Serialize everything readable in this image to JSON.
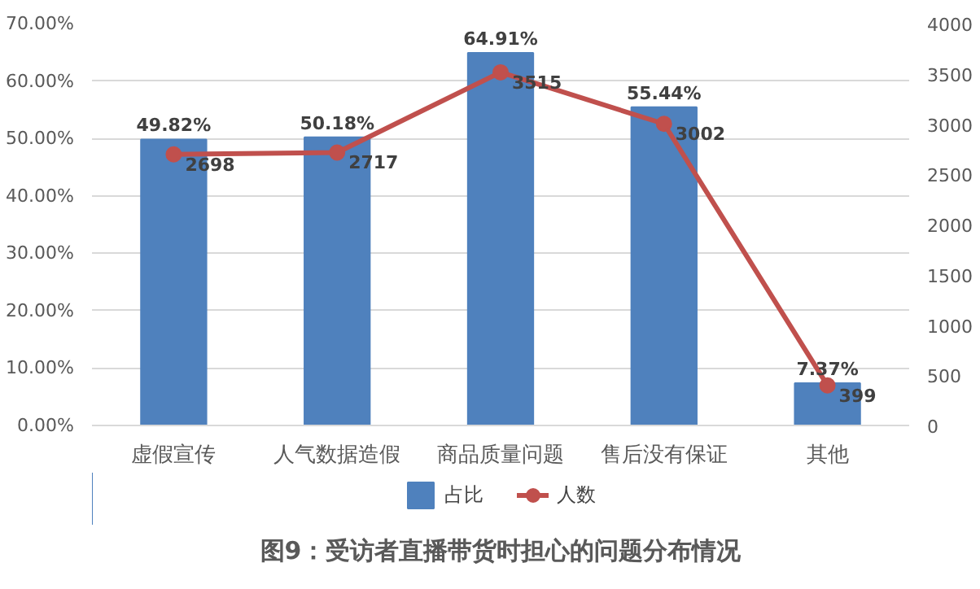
{
  "chart_data": {
    "type": "bar",
    "title": "图9：受访者直播带货时担心的问题分布情况",
    "categories": [
      "虚假宣传",
      "人气数据造假",
      "商品质量问题",
      "售后没有保证",
      "其他"
    ],
    "series": [
      {
        "name": "占比",
        "type": "bar",
        "color": "#4f81bd",
        "values": [
          49.82,
          50.18,
          64.91,
          55.44,
          7.37
        ],
        "value_labels": [
          "49.82%",
          "50.18%",
          "64.91%",
          "55.44%",
          "7.37%"
        ]
      },
      {
        "name": "人数",
        "type": "line",
        "axis": "y2",
        "color": "#c0504d",
        "marker": "circle",
        "values": [
          2698,
          2717,
          3515,
          3002,
          399
        ],
        "value_labels": [
          "2698",
          "2717",
          "3515",
          "3002",
          "399"
        ]
      }
    ],
    "ylim": [
      0,
      70
    ],
    "yticks": [
      {
        "value": 0,
        "label": "0.00%"
      },
      {
        "value": 10,
        "label": "10.00%"
      },
      {
        "value": 20,
        "label": "20.00%"
      },
      {
        "value": 30,
        "label": "30.00%"
      },
      {
        "value": 40,
        "label": "40.00%"
      },
      {
        "value": 50,
        "label": "50.00%"
      },
      {
        "value": 60,
        "label": "60.00%"
      },
      {
        "value": 70,
        "label": "70.00%"
      }
    ],
    "y2lim": [
      0,
      4000
    ],
    "y2ticks": [
      0,
      500,
      1000,
      1500,
      2000,
      2500,
      3000,
      3500,
      4000
    ],
    "grid": "y",
    "legend": "bottom"
  }
}
